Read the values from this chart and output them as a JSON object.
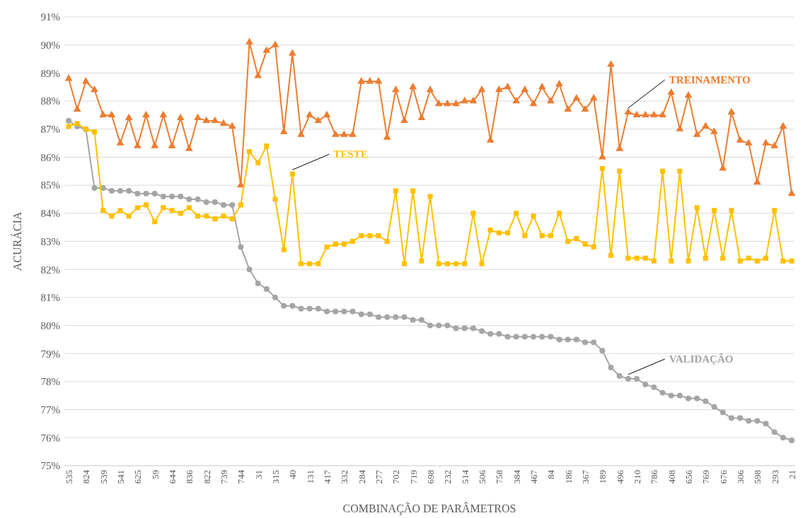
{
  "chart_data": {
    "type": "line",
    "xlabel": "COMBINAÇÃO DE PARÂMETROS",
    "ylabel": "ACURÁCIA",
    "categories": [
      "535",
      null,
      "824",
      null,
      "539",
      null,
      "541",
      null,
      "625",
      null,
      "59",
      null,
      "644",
      null,
      "836",
      null,
      "822",
      null,
      "739",
      null,
      "744",
      null,
      "31",
      null,
      "315",
      null,
      "40",
      null,
      "131",
      null,
      "417",
      null,
      "332",
      null,
      "284",
      null,
      "277",
      null,
      "702",
      null,
      "719",
      null,
      "698",
      null,
      "232",
      null,
      "514",
      null,
      "506",
      null,
      "758",
      null,
      "384",
      null,
      "467",
      null,
      "84",
      null,
      "186",
      null,
      "367",
      null,
      "189",
      null,
      "496",
      null,
      "210",
      null,
      "786",
      null,
      "408",
      null,
      "656",
      null,
      "769",
      null,
      "676",
      null,
      "306",
      null,
      "598",
      null,
      "293",
      null,
      "21"
    ],
    "ylim": [
      75,
      91
    ],
    "yticks": [
      {
        "value": 75,
        "label": "75%"
      },
      {
        "value": 76,
        "label": "76%"
      },
      {
        "value": 77,
        "label": "77%"
      },
      {
        "value": 78,
        "label": "78%"
      },
      {
        "value": 79,
        "label": "79%"
      },
      {
        "value": 80,
        "label": "80%"
      },
      {
        "value": 81,
        "label": "81%"
      },
      {
        "value": 82,
        "label": "82%"
      },
      {
        "value": 83,
        "label": "83%"
      },
      {
        "value": 84,
        "label": "84%"
      },
      {
        "value": 85,
        "label": "85%"
      },
      {
        "value": 86,
        "label": "86%"
      },
      {
        "value": 87,
        "label": "87%"
      },
      {
        "value": 88,
        "label": "88%"
      },
      {
        "value": 89,
        "label": "89%"
      },
      {
        "value": 90,
        "label": "90%"
      },
      {
        "value": 91,
        "label": "91%"
      }
    ],
    "grid": "y",
    "legend": false,
    "series": [
      {
        "name": "TREINAMENTO",
        "color": "#ed7d31",
        "marker": "triangle",
        "values": [
          88.8,
          87.7,
          88.7,
          88.4,
          87.5,
          87.5,
          86.5,
          87.4,
          86.4,
          87.5,
          86.4,
          87.5,
          86.4,
          87.4,
          86.3,
          87.4,
          87.3,
          87.3,
          87.2,
          87.1,
          85.0,
          90.1,
          88.9,
          89.8,
          90.0,
          86.9,
          89.7,
          86.8,
          87.5,
          87.3,
          87.5,
          86.8,
          86.8,
          86.8,
          88.7,
          88.7,
          88.7,
          86.7,
          88.4,
          87.3,
          88.5,
          87.4,
          88.4,
          87.9,
          87.9,
          87.9,
          88.0,
          88.0,
          88.4,
          86.6,
          88.4,
          88.5,
          88.0,
          88.4,
          87.9,
          88.5,
          88.0,
          88.6,
          87.7,
          88.1,
          87.7,
          88.1,
          86.0,
          89.3,
          86.3,
          87.6,
          87.5,
          87.5,
          87.5,
          87.5,
          88.3,
          87.0,
          88.2,
          86.8,
          87.1,
          86.9,
          85.6,
          87.6,
          86.6,
          86.5,
          85.1,
          86.5,
          86.4,
          87.1,
          84.7
        ]
      },
      {
        "name": "VALIDAÇÃO",
        "color": "#a5a5a5",
        "marker": "circle",
        "values": [
          87.3,
          87.1,
          87.0,
          84.9,
          84.9,
          84.8,
          84.8,
          84.8,
          84.7,
          84.7,
          84.7,
          84.6,
          84.6,
          84.6,
          84.5,
          84.5,
          84.4,
          84.4,
          84.3,
          84.3,
          82.8,
          82.0,
          81.5,
          81.3,
          81.0,
          80.7,
          80.7,
          80.6,
          80.6,
          80.6,
          80.5,
          80.5,
          80.5,
          80.5,
          80.4,
          80.4,
          80.3,
          80.3,
          80.3,
          80.3,
          80.2,
          80.2,
          80.0,
          80.0,
          80.0,
          79.9,
          79.9,
          79.9,
          79.8,
          79.7,
          79.7,
          79.6,
          79.6,
          79.6,
          79.6,
          79.6,
          79.6,
          79.5,
          79.5,
          79.5,
          79.4,
          79.4,
          79.1,
          78.5,
          78.2,
          78.1,
          78.1,
          77.9,
          77.8,
          77.6,
          77.5,
          77.5,
          77.4,
          77.4,
          77.3,
          77.1,
          76.9,
          76.7,
          76.7,
          76.6,
          76.6,
          76.5,
          76.2,
          76.0,
          75.9
        ]
      },
      {
        "name": "TESTE",
        "color": "#ffc000",
        "marker": "square",
        "values": [
          87.1,
          87.2,
          87.0,
          86.9,
          84.1,
          83.9,
          84.1,
          83.9,
          84.2,
          84.3,
          83.7,
          84.2,
          84.1,
          84.0,
          84.2,
          83.9,
          83.9,
          83.8,
          83.9,
          83.8,
          84.3,
          86.2,
          85.8,
          86.4,
          84.5,
          82.7,
          85.4,
          82.2,
          82.2,
          82.2,
          82.8,
          82.9,
          82.9,
          83.0,
          83.2,
          83.2,
          83.2,
          83.0,
          84.8,
          82.2,
          84.8,
          82.3,
          84.6,
          82.2,
          82.2,
          82.2,
          82.2,
          84.0,
          82.2,
          83.4,
          83.3,
          83.3,
          84.0,
          83.2,
          83.9,
          83.2,
          83.2,
          84.0,
          83.0,
          83.1,
          82.9,
          82.8,
          85.6,
          82.5,
          85.5,
          82.4,
          82.4,
          82.4,
          82.3,
          85.5,
          82.3,
          85.5,
          82.3,
          84.2,
          82.4,
          84.1,
          82.4,
          84.1,
          82.3,
          82.4,
          82.3,
          82.4,
          84.1,
          82.3,
          82.3
        ]
      }
    ]
  }
}
